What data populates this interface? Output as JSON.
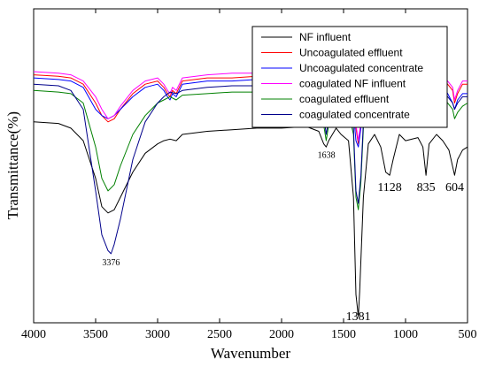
{
  "chart_data": {
    "type": "line",
    "xlabel": "Wavenumber",
    "ylabel": "Transmittance(%)",
    "xlim": [
      4000,
      500
    ],
    "ylim": [
      0,
      100
    ],
    "x_ticks": [
      "4000",
      "3500",
      "3000",
      "2500",
      "2000",
      "1500",
      "1000",
      "500"
    ],
    "grid": false,
    "legend_position": "top-right",
    "series": [
      {
        "name": "NF influent",
        "color": "#000000",
        "points": [
          [
            4000,
            64
          ],
          [
            3800,
            63.5
          ],
          [
            3700,
            62
          ],
          [
            3600,
            58
          ],
          [
            3500,
            46
          ],
          [
            3450,
            37
          ],
          [
            3400,
            35
          ],
          [
            3350,
            36
          ],
          [
            3300,
            40
          ],
          [
            3200,
            48
          ],
          [
            3100,
            54
          ],
          [
            3000,
            57
          ],
          [
            2950,
            58
          ],
          [
            2900,
            58.5
          ],
          [
            2850,
            58
          ],
          [
            2800,
            60
          ],
          [
            2600,
            61
          ],
          [
            2400,
            61.5
          ],
          [
            2200,
            62
          ],
          [
            2000,
            62
          ],
          [
            1800,
            62.5
          ],
          [
            1700,
            61
          ],
          [
            1660,
            57
          ],
          [
            1640,
            56
          ],
          [
            1620,
            58
          ],
          [
            1560,
            62
          ],
          [
            1520,
            60
          ],
          [
            1460,
            58
          ],
          [
            1420,
            40
          ],
          [
            1400,
            9
          ],
          [
            1381,
            2
          ],
          [
            1370,
            10
          ],
          [
            1340,
            40
          ],
          [
            1300,
            57
          ],
          [
            1250,
            60
          ],
          [
            1200,
            56
          ],
          [
            1160,
            48
          ],
          [
            1128,
            47
          ],
          [
            1100,
            52
          ],
          [
            1050,
            60
          ],
          [
            1000,
            58
          ],
          [
            900,
            59
          ],
          [
            860,
            56
          ],
          [
            835,
            47
          ],
          [
            810,
            57
          ],
          [
            750,
            60
          ],
          [
            700,
            58
          ],
          [
            650,
            55
          ],
          [
            604,
            47
          ],
          [
            580,
            52
          ],
          [
            540,
            55
          ],
          [
            500,
            56
          ]
        ]
      },
      {
        "name": "Uncoagulated effluent",
        "color": "#ff0000",
        "points": [
          [
            4000,
            79
          ],
          [
            3800,
            78.5
          ],
          [
            3700,
            78
          ],
          [
            3600,
            76
          ],
          [
            3500,
            70
          ],
          [
            3450,
            66
          ],
          [
            3400,
            64
          ],
          [
            3350,
            65
          ],
          [
            3300,
            68
          ],
          [
            3200,
            73
          ],
          [
            3100,
            76
          ],
          [
            3000,
            77
          ],
          [
            2950,
            75
          ],
          [
            2920,
            73
          ],
          [
            2900,
            72
          ],
          [
            2880,
            74
          ],
          [
            2850,
            73
          ],
          [
            2800,
            77
          ],
          [
            2600,
            78
          ],
          [
            2400,
            78
          ],
          [
            2200,
            78.5
          ],
          [
            2000,
            78.5
          ],
          [
            1800,
            79
          ],
          [
            1700,
            78.5
          ],
          [
            1660,
            73
          ],
          [
            1640,
            72
          ],
          [
            1620,
            75
          ],
          [
            1560,
            78.5
          ],
          [
            1500,
            77
          ],
          [
            1460,
            72
          ],
          [
            1420,
            70
          ],
          [
            1400,
            62
          ],
          [
            1381,
            57
          ],
          [
            1360,
            63
          ],
          [
            1340,
            74
          ],
          [
            1300,
            77
          ],
          [
            1250,
            79
          ],
          [
            1200,
            78.5
          ],
          [
            1150,
            76
          ],
          [
            1128,
            75
          ],
          [
            1100,
            77
          ],
          [
            1000,
            78.5
          ],
          [
            900,
            79
          ],
          [
            850,
            78
          ],
          [
            835,
            77
          ],
          [
            810,
            79
          ],
          [
            700,
            78
          ],
          [
            620,
            74
          ],
          [
            604,
            70
          ],
          [
            580,
            73
          ],
          [
            540,
            76
          ],
          [
            500,
            76
          ]
        ]
      },
      {
        "name": "Uncoagulated concentrate",
        "color": "#0000ff",
        "points": [
          [
            4000,
            78
          ],
          [
            3800,
            77.5
          ],
          [
            3700,
            77
          ],
          [
            3600,
            75
          ],
          [
            3500,
            68
          ],
          [
            3450,
            66
          ],
          [
            3400,
            65
          ],
          [
            3350,
            66
          ],
          [
            3300,
            68
          ],
          [
            3200,
            72
          ],
          [
            3100,
            75
          ],
          [
            3000,
            76
          ],
          [
            2950,
            74
          ],
          [
            2920,
            72
          ],
          [
            2900,
            71
          ],
          [
            2880,
            73
          ],
          [
            2850,
            72
          ],
          [
            2800,
            76
          ],
          [
            2600,
            77
          ],
          [
            2400,
            77
          ],
          [
            2200,
            77.5
          ],
          [
            2000,
            77
          ],
          [
            1800,
            78
          ],
          [
            1700,
            77
          ],
          [
            1660,
            69
          ],
          [
            1640,
            67
          ],
          [
            1620,
            72
          ],
          [
            1560,
            77
          ],
          [
            1500,
            76
          ],
          [
            1460,
            70
          ],
          [
            1420,
            67
          ],
          [
            1400,
            58
          ],
          [
            1381,
            56
          ],
          [
            1360,
            62
          ],
          [
            1340,
            72
          ],
          [
            1300,
            76
          ],
          [
            1250,
            77.5
          ],
          [
            1200,
            76
          ],
          [
            1150,
            70
          ],
          [
            1128,
            68
          ],
          [
            1100,
            72
          ],
          [
            1000,
            76
          ],
          [
            900,
            77
          ],
          [
            850,
            74
          ],
          [
            835,
            72
          ],
          [
            810,
            76
          ],
          [
            700,
            76
          ],
          [
            620,
            70
          ],
          [
            604,
            68
          ],
          [
            580,
            71
          ],
          [
            540,
            73
          ],
          [
            500,
            73
          ]
        ]
      },
      {
        "name": "coagulated NF influent",
        "color": "#ff00ff",
        "points": [
          [
            4000,
            80
          ],
          [
            3800,
            79.5
          ],
          [
            3700,
            79
          ],
          [
            3600,
            77
          ],
          [
            3500,
            72
          ],
          [
            3450,
            68
          ],
          [
            3400,
            65
          ],
          [
            3350,
            66
          ],
          [
            3300,
            69
          ],
          [
            3200,
            74
          ],
          [
            3100,
            77
          ],
          [
            3000,
            78
          ],
          [
            2950,
            76
          ],
          [
            2920,
            74
          ],
          [
            2900,
            73
          ],
          [
            2880,
            75
          ],
          [
            2850,
            74
          ],
          [
            2800,
            78
          ],
          [
            2600,
            79
          ],
          [
            2400,
            79.5
          ],
          [
            2200,
            79.5
          ],
          [
            2000,
            80
          ],
          [
            1800,
            80
          ],
          [
            1700,
            79.5
          ],
          [
            1660,
            74
          ],
          [
            1640,
            73
          ],
          [
            1620,
            76
          ],
          [
            1560,
            79.5
          ],
          [
            1500,
            78
          ],
          [
            1460,
            74
          ],
          [
            1420,
            71
          ],
          [
            1400,
            63
          ],
          [
            1381,
            58
          ],
          [
            1360,
            64
          ],
          [
            1340,
            75
          ],
          [
            1300,
            78
          ],
          [
            1250,
            80
          ],
          [
            1200,
            79.5
          ],
          [
            1150,
            77
          ],
          [
            1128,
            76
          ],
          [
            1100,
            78
          ],
          [
            1000,
            79.5
          ],
          [
            900,
            80
          ],
          [
            850,
            79
          ],
          [
            835,
            78
          ],
          [
            810,
            80
          ],
          [
            700,
            79
          ],
          [
            620,
            75
          ],
          [
            604,
            71
          ],
          [
            580,
            74
          ],
          [
            540,
            77
          ],
          [
            500,
            77
          ]
        ]
      },
      {
        "name": "coagulated effluent",
        "color": "#008000",
        "points": [
          [
            4000,
            74
          ],
          [
            3800,
            73.5
          ],
          [
            3700,
            73
          ],
          [
            3600,
            70
          ],
          [
            3500,
            56
          ],
          [
            3450,
            46
          ],
          [
            3400,
            42
          ],
          [
            3350,
            44
          ],
          [
            3300,
            50
          ],
          [
            3200,
            60
          ],
          [
            3100,
            66
          ],
          [
            3000,
            70
          ],
          [
            2950,
            71
          ],
          [
            2900,
            72
          ],
          [
            2850,
            71
          ],
          [
            2800,
            72.5
          ],
          [
            2600,
            73
          ],
          [
            2400,
            73.5
          ],
          [
            2200,
            73.5
          ],
          [
            2000,
            74
          ],
          [
            1800,
            74
          ],
          [
            1700,
            73
          ],
          [
            1660,
            63
          ],
          [
            1640,
            58
          ],
          [
            1620,
            63
          ],
          [
            1560,
            72
          ],
          [
            1500,
            71
          ],
          [
            1460,
            67
          ],
          [
            1420,
            60
          ],
          [
            1400,
            40
          ],
          [
            1381,
            36
          ],
          [
            1360,
            45
          ],
          [
            1340,
            62
          ],
          [
            1300,
            70
          ],
          [
            1250,
            73
          ],
          [
            1200,
            72.5
          ],
          [
            1150,
            71
          ],
          [
            1128,
            70
          ],
          [
            1100,
            72
          ],
          [
            1000,
            73
          ],
          [
            900,
            73
          ],
          [
            850,
            71
          ],
          [
            835,
            70
          ],
          [
            810,
            72
          ],
          [
            700,
            72
          ],
          [
            620,
            68
          ],
          [
            604,
            65
          ],
          [
            580,
            67
          ],
          [
            540,
            69
          ],
          [
            500,
            70
          ]
        ]
      },
      {
        "name": "coagulated concentrate",
        "color": "#00008b",
        "points": [
          [
            4000,
            76
          ],
          [
            3800,
            75.5
          ],
          [
            3700,
            74
          ],
          [
            3600,
            68
          ],
          [
            3500,
            42
          ],
          [
            3450,
            28
          ],
          [
            3400,
            23
          ],
          [
            3376,
            22
          ],
          [
            3350,
            25
          ],
          [
            3300,
            33
          ],
          [
            3200,
            52
          ],
          [
            3100,
            64
          ],
          [
            3000,
            70
          ],
          [
            2950,
            72
          ],
          [
            2900,
            73.5
          ],
          [
            2850,
            73
          ],
          [
            2800,
            74
          ],
          [
            2600,
            75
          ],
          [
            2400,
            75.5
          ],
          [
            2200,
            75.5
          ],
          [
            2000,
            76
          ],
          [
            1800,
            76
          ],
          [
            1700,
            75
          ],
          [
            1660,
            66
          ],
          [
            1640,
            60
          ],
          [
            1620,
            65
          ],
          [
            1560,
            74
          ],
          [
            1500,
            73
          ],
          [
            1460,
            68
          ],
          [
            1420,
            62
          ],
          [
            1400,
            42
          ],
          [
            1381,
            38
          ],
          [
            1360,
            47
          ],
          [
            1340,
            64
          ],
          [
            1300,
            72
          ],
          [
            1250,
            75
          ],
          [
            1200,
            74
          ],
          [
            1150,
            72
          ],
          [
            1128,
            71
          ],
          [
            1100,
            73
          ],
          [
            1000,
            75
          ],
          [
            900,
            75.5
          ],
          [
            850,
            73
          ],
          [
            835,
            72
          ],
          [
            810,
            74
          ],
          [
            700,
            74
          ],
          [
            620,
            70
          ],
          [
            604,
            68
          ],
          [
            580,
            70
          ],
          [
            540,
            72
          ],
          [
            500,
            72
          ]
        ]
      }
    ],
    "annotations": [
      {
        "text": "3376",
        "x": 3376,
        "size": "small"
      },
      {
        "text": "1638",
        "x": 1638,
        "size": "small"
      },
      {
        "text": "1381",
        "x": 1381,
        "size": "large"
      },
      {
        "text": "1128",
        "x": 1128,
        "size": "large"
      },
      {
        "text": "835",
        "x": 835,
        "size": "large"
      },
      {
        "text": "604",
        "x": 604,
        "size": "large"
      }
    ]
  }
}
